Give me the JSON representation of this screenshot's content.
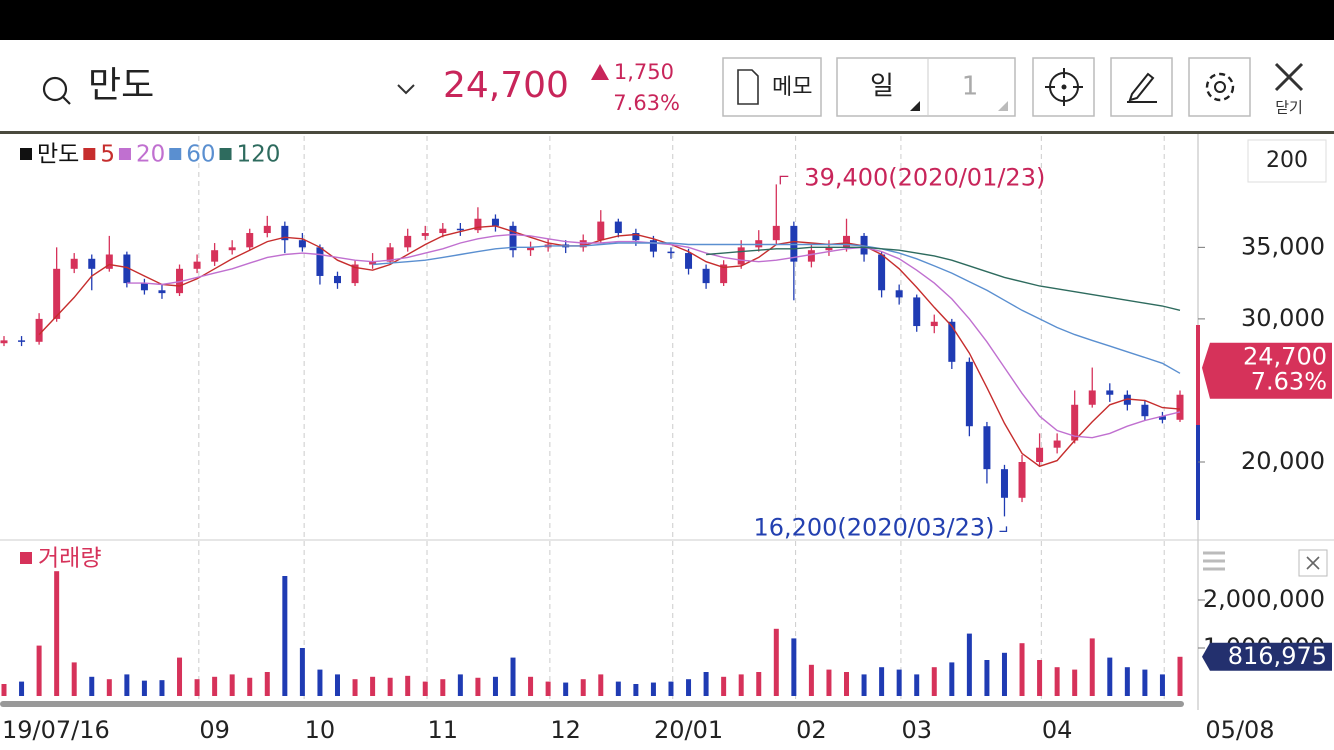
{
  "header": {
    "stock": "만도",
    "price": "24,700",
    "change": "1,750",
    "change_pct": "7.63%",
    "memo": "메모",
    "period": "일",
    "period_count": "1",
    "close": "닫기",
    "zoom": "200"
  },
  "chart_data": [
    {
      "type": "candlestick",
      "name": "만도",
      "up_color": "#d6325a",
      "down_color": "#1f3bb3",
      "categories": [
        "19/07/16",
        null,
        null,
        null,
        null,
        null,
        null,
        null,
        null,
        null,
        null,
        null,
        "09",
        null,
        null,
        null,
        null,
        null,
        "10",
        null,
        null,
        null,
        null,
        null,
        null,
        "11",
        null,
        null,
        null,
        null,
        null,
        null,
        "12",
        null,
        null,
        null,
        null,
        null,
        null,
        "20/01",
        null,
        null,
        null,
        null,
        null,
        null,
        "02",
        null,
        null,
        null,
        null,
        null,
        "03",
        null,
        null,
        null,
        null,
        null,
        null,
        null,
        "04",
        null,
        null,
        null,
        null,
        null,
        null,
        "05/08"
      ],
      "open": [
        28300,
        28500,
        28400,
        30000,
        33500,
        34200,
        33500,
        34500,
        32500,
        32000,
        31800,
        33500,
        34000,
        34800,
        35000,
        36000,
        36500,
        35500,
        35000,
        33000,
        32500,
        33800,
        34000,
        35000,
        35800,
        36000,
        36300,
        36200,
        37000,
        36500,
        34800,
        35000,
        35200,
        35000,
        35500,
        36800,
        36000,
        35500,
        34700,
        34600,
        33500,
        32500,
        33800,
        35000,
        35500,
        36500,
        34000,
        34800,
        35000,
        35800,
        34500,
        32000,
        31500,
        29500,
        29800,
        27000,
        22500,
        19500,
        17500,
        20000,
        21000,
        21500,
        24000,
        25000,
        24700,
        24000,
        23200,
        22950
      ],
      "high": [
        28800,
        28800,
        30400,
        35000,
        34600,
        34500,
        35800,
        34700,
        32800,
        32400,
        33800,
        34500,
        35300,
        35500,
        36300,
        37200,
        36800,
        36000,
        35200,
        33300,
        34100,
        34600,
        35300,
        36300,
        36500,
        36700,
        36700,
        37800,
        37300,
        36800,
        35400,
        35600,
        35500,
        35900,
        37600,
        37000,
        36300,
        35800,
        35000,
        34900,
        33800,
        34100,
        35500,
        36200,
        39400,
        36800,
        35200,
        35500,
        37000,
        36000,
        34700,
        32400,
        31700,
        30300,
        30000,
        27300,
        22800,
        19800,
        20500,
        22000,
        22000,
        25000,
        26600,
        25500,
        25000,
        24300,
        23500,
        25000
      ],
      "low": [
        28100,
        28100,
        28200,
        29800,
        33200,
        32000,
        33300,
        32200,
        31700,
        31400,
        31600,
        33200,
        33700,
        34500,
        34800,
        35700,
        34600,
        34700,
        32400,
        32100,
        32300,
        33500,
        33800,
        34700,
        35500,
        35700,
        35800,
        36000,
        36100,
        34300,
        34400,
        34700,
        34600,
        34700,
        35300,
        35700,
        35100,
        34300,
        34200,
        33100,
        32100,
        32300,
        33500,
        34700,
        35200,
        31300,
        33600,
        34400,
        34700,
        34000,
        31500,
        31000,
        29100,
        29000,
        26500,
        21800,
        18500,
        16200,
        17200,
        19700,
        20600,
        21300,
        23800,
        24200,
        23600,
        22900,
        22700,
        22800
      ],
      "close": [
        28500,
        28400,
        30000,
        33500,
        34200,
        33500,
        34500,
        32500,
        32000,
        31800,
        33500,
        34000,
        34800,
        35000,
        36000,
        36500,
        35500,
        35000,
        33000,
        32500,
        33800,
        34000,
        35000,
        35800,
        36000,
        36300,
        36200,
        37000,
        36500,
        34800,
        35000,
        35200,
        35000,
        35500,
        36800,
        36000,
        35500,
        34700,
        34600,
        33500,
        32500,
        33800,
        35000,
        35500,
        36500,
        34000,
        34800,
        35000,
        35800,
        34500,
        32000,
        31500,
        29500,
        29800,
        27000,
        22500,
        19500,
        17500,
        20000,
        21000,
        21500,
        24000,
        25000,
        24700,
        24000,
        23200,
        22950,
        24700
      ],
      "value_labels": [
        null,
        null,
        null,
        null,
        null,
        null,
        null,
        null,
        null,
        null,
        null,
        null,
        null,
        null,
        null,
        null,
        null,
        null,
        null,
        null,
        null,
        null,
        null,
        null,
        null,
        null,
        null,
        null,
        null,
        null,
        null,
        null,
        null,
        null,
        null,
        null,
        null,
        null,
        null,
        null,
        null,
        null,
        null,
        null,
        null,
        null,
        null,
        null,
        null,
        null,
        null,
        null,
        null,
        null,
        null,
        null,
        null,
        null,
        null,
        null,
        null,
        null,
        null,
        null,
        null,
        null,
        null,
        "24,700"
      ],
      "series": [
        {
          "name": "5",
          "color": "#c62d2d",
          "values": [
            null,
            null,
            28900,
            30200,
            31500,
            33000,
            33800,
            33600,
            33000,
            32400,
            32300,
            32800,
            33500,
            34200,
            34800,
            35400,
            35700,
            35600,
            35000,
            34100,
            33600,
            33400,
            33800,
            34500,
            35200,
            35800,
            36100,
            36400,
            36500,
            36100,
            35700,
            35300,
            35100,
            35100,
            35500,
            35800,
            35900,
            35600,
            35200,
            34700,
            34000,
            33600,
            33700,
            34300,
            35200,
            35400,
            35300,
            35200,
            35300,
            35100,
            34500,
            33500,
            32200,
            30800,
            29500,
            27600,
            25200,
            22700,
            20600,
            19700,
            20100,
            21500,
            22800,
            24000,
            24400,
            24300,
            23800,
            23700
          ]
        },
        {
          "name": "20",
          "color": "#c070d0",
          "values": [
            null,
            null,
            null,
            null,
            null,
            null,
            null,
            32500,
            32500,
            32400,
            32600,
            32900,
            33200,
            33500,
            33900,
            34300,
            34500,
            34600,
            34500,
            34300,
            34100,
            34000,
            34100,
            34300,
            34600,
            34900,
            35300,
            35600,
            35800,
            35900,
            35800,
            35600,
            35400,
            35300,
            35300,
            35400,
            35400,
            35300,
            35200,
            35000,
            34600,
            34300,
            34100,
            34000,
            34100,
            34300,
            34500,
            34700,
            34900,
            35000,
            34700,
            34200,
            33400,
            32500,
            31400,
            30000,
            28400,
            26600,
            24800,
            23200,
            22200,
            21800,
            21700,
            22000,
            22500,
            22900,
            23200,
            23500
          ]
        },
        {
          "name": "60",
          "color": "#5a8fd0",
          "values": [
            null,
            null,
            null,
            null,
            null,
            null,
            null,
            null,
            null,
            null,
            null,
            null,
            null,
            null,
            null,
            null,
            null,
            null,
            null,
            null,
            null,
            33800,
            33900,
            34000,
            34100,
            34300,
            34500,
            34700,
            34900,
            35000,
            35000,
            35100,
            35100,
            35100,
            35200,
            35300,
            35300,
            35300,
            35300,
            35200,
            35200,
            35200,
            35200,
            35200,
            35200,
            35200,
            35200,
            35200,
            35200,
            35100,
            34900,
            34600,
            34200,
            33700,
            33200,
            32600,
            32000,
            31300,
            30600,
            30000,
            29400,
            28900,
            28500,
            28100,
            27700,
            27300,
            26900,
            26200
          ]
        },
        {
          "name": "120",
          "color": "#2e6b5e",
          "values": [
            null,
            null,
            null,
            null,
            null,
            null,
            null,
            null,
            null,
            null,
            null,
            null,
            null,
            null,
            null,
            null,
            null,
            null,
            null,
            null,
            null,
            null,
            null,
            null,
            null,
            null,
            null,
            null,
            null,
            null,
            null,
            null,
            null,
            null,
            null,
            null,
            null,
            null,
            null,
            null,
            34500,
            34600,
            34700,
            34800,
            34900,
            34900,
            35000,
            35000,
            35000,
            35000,
            34900,
            34800,
            34600,
            34400,
            34100,
            33700,
            33300,
            32900,
            32600,
            32300,
            32100,
            31900,
            31700,
            31500,
            31300,
            31100,
            30900,
            30600
          ]
        }
      ],
      "annotations": [
        {
          "value": 39400,
          "label": "39,400(2020/01/23)",
          "color": "#c8255a"
        },
        {
          "value": 16200,
          "label": "16,200(2020/03/23)",
          "color": "#2340b0"
        }
      ],
      "ylim": [
        14550,
        42850
      ],
      "yticks": [
        {
          "value": 20000,
          "label": "20,000"
        },
        {
          "value": 30000,
          "label": "30,000"
        },
        {
          "value": 35000,
          "label": "35,000"
        }
      ],
      "grid": false
    },
    {
      "type": "bar",
      "series": [
        {
          "name": "거래량",
          "color": "#d6325a",
          "values": [
            250000,
            300000,
            1050000,
            2600000,
            700000,
            400000,
            350000,
            450000,
            320000,
            330000,
            800000,
            350000,
            400000,
            450000,
            380000,
            500000,
            2500000,
            1000000,
            550000,
            450000,
            350000,
            400000,
            380000,
            420000,
            300000,
            350000,
            450000,
            380000,
            400000,
            800000,
            400000,
            300000,
            280000,
            350000,
            450000,
            300000,
            250000,
            280000,
            300000,
            350000,
            500000,
            400000,
            450000,
            500000,
            1400000,
            1200000,
            650000,
            550000,
            500000,
            450000,
            600000,
            550000,
            450000,
            600000,
            700000,
            1300000,
            750000,
            900000,
            1100000,
            750000,
            600000,
            550000,
            1200000,
            800000,
            600000,
            550000,
            450000,
            816975
          ],
          "value_labels": [
            null,
            null,
            null,
            null,
            null,
            null,
            null,
            null,
            null,
            null,
            null,
            null,
            null,
            null,
            null,
            null,
            null,
            null,
            null,
            null,
            null,
            null,
            null,
            null,
            null,
            null,
            null,
            null,
            null,
            null,
            null,
            null,
            null,
            null,
            null,
            null,
            null,
            null,
            null,
            null,
            null,
            null,
            null,
            null,
            null,
            null,
            null,
            null,
            null,
            null,
            null,
            null,
            null,
            null,
            null,
            null,
            null,
            null,
            null,
            null,
            null,
            null,
            null,
            null,
            null,
            null,
            null,
            "816,975"
          ]
        }
      ],
      "ylim": [
        0,
        3250000
      ],
      "yticks": [
        {
          "value": 1000000,
          "label": "1,000,000"
        },
        {
          "value": 2000000,
          "label": "2,000,000"
        }
      ],
      "grid": false
    }
  ]
}
